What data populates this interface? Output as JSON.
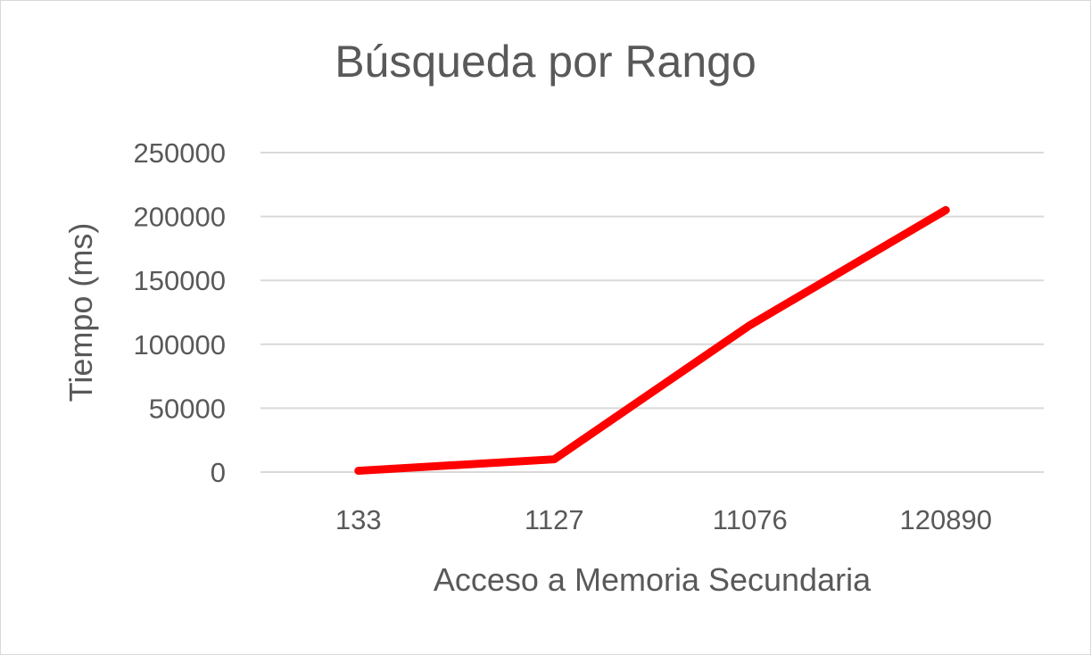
{
  "chart_data": {
    "type": "line",
    "title": "Búsqueda por Rango",
    "xlabel": "Acceso a Memoria Secundaria",
    "ylabel": "Tiempo (ms)",
    "categories": [
      "133",
      "1127",
      "11076",
      "120890"
    ],
    "series": [
      {
        "values": [
          1000,
          10000,
          115000,
          205000
        ],
        "color": "#ff0000"
      }
    ],
    "ylim": [
      0,
      250000
    ],
    "yticks": [
      0,
      50000,
      100000,
      150000,
      200000,
      250000
    ],
    "grid": true,
    "legend": "none"
  }
}
